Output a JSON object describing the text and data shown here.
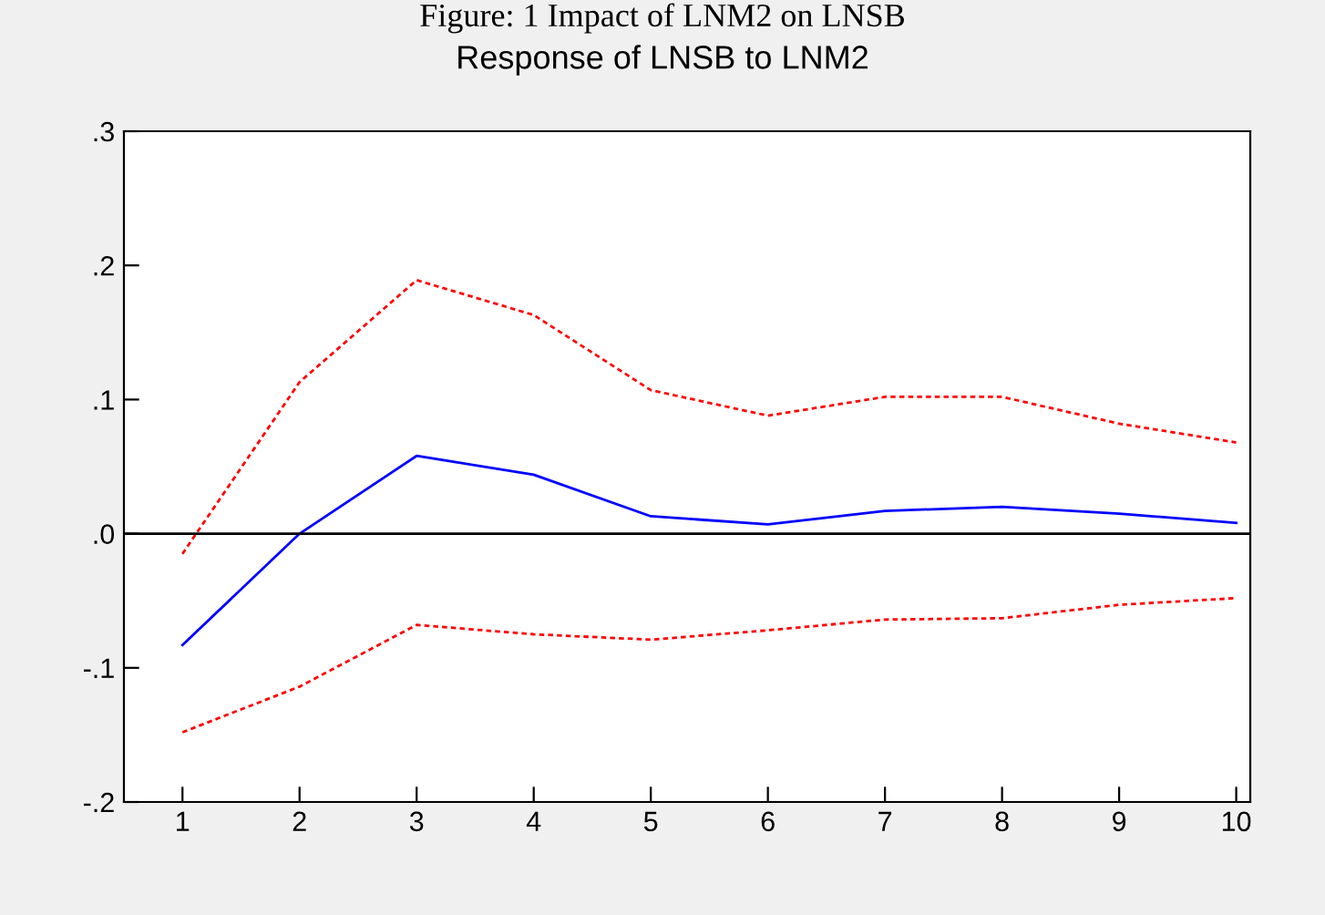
{
  "chart_data": {
    "type": "line",
    "title": "Figure: 1 Impact of LNM2 on LNSB",
    "subtitle": "Response of LNSB to LNM2",
    "categories": [
      "1",
      "2",
      "3",
      "4",
      "5",
      "6",
      "7",
      "8",
      "9",
      "10"
    ],
    "series": [
      {
        "color": "#0000ff",
        "line_style": "solid",
        "values": [
          -0.083,
          0.0,
          0.058,
          0.044,
          0.013,
          0.007,
          0.017,
          0.02,
          0.015,
          0.008
        ]
      },
      {
        "color": "#ff0000",
        "line_style": "dashed",
        "values": [
          -0.015,
          0.113,
          0.189,
          0.163,
          0.107,
          0.088,
          0.102,
          0.102,
          0.082,
          0.068
        ]
      },
      {
        "color": "#ff0000",
        "line_style": "dashed",
        "values": [
          -0.148,
          -0.114,
          -0.068,
          -0.075,
          -0.079,
          -0.072,
          -0.064,
          -0.063,
          -0.053,
          -0.048
        ]
      }
    ],
    "ylim": [
      -0.2,
      0.3
    ],
    "yticks": [
      {
        "value": 0.3,
        "label": ".3"
      },
      {
        "value": 0.2,
        "label": ".2"
      },
      {
        "value": 0.1,
        "label": ".1"
      },
      {
        "value": 0.0,
        "label": ".0"
      },
      {
        "value": -0.1,
        "label": "-.1"
      },
      {
        "value": -0.2,
        "label": "-.2"
      }
    ],
    "ref_lines": [
      {
        "axis": "y",
        "value": 0.0,
        "color": "#000000",
        "line_style": "solid"
      }
    ],
    "grid": false,
    "legend": false,
    "marker": "none"
  }
}
